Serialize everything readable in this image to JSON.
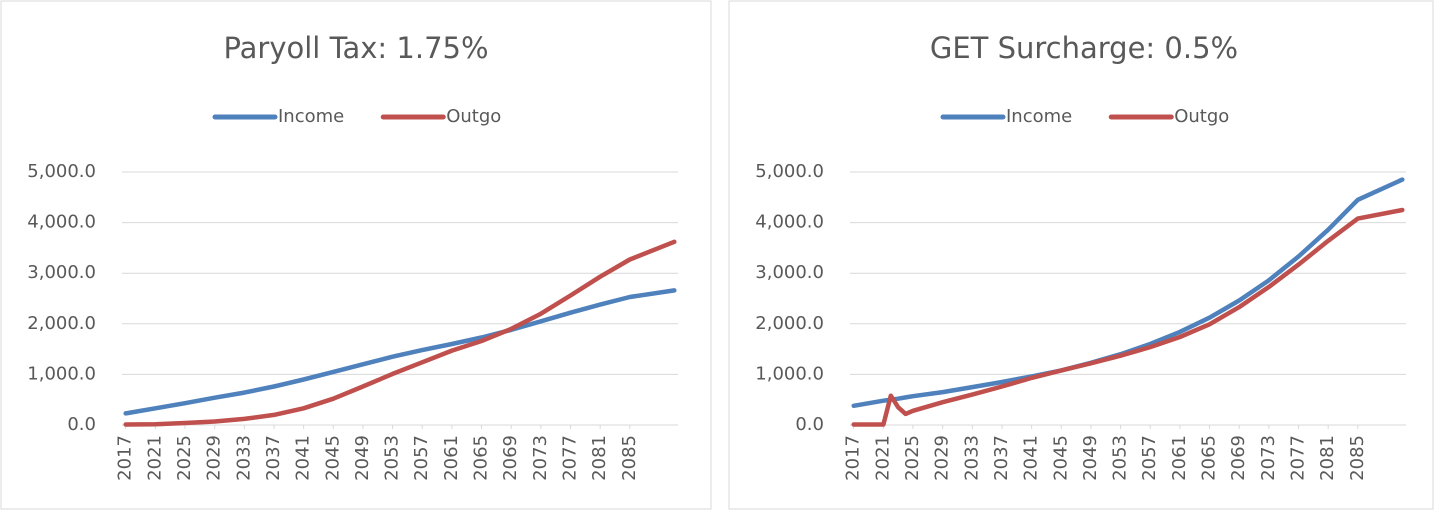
{
  "chart_data": [
    {
      "type": "line",
      "title": "Paryoll Tax: 1.75%",
      "x": [
        2017,
        2021,
        2025,
        2029,
        2033,
        2037,
        2041,
        2045,
        2049,
        2053,
        2057,
        2061,
        2065,
        2069,
        2073,
        2077,
        2081,
        2085,
        2091
      ],
      "series": [
        {
          "name": "Income",
          "color": "#4f81bd",
          "values": [
            230,
            330,
            430,
            540,
            640,
            760,
            900,
            1050,
            1200,
            1350,
            1480,
            1600,
            1730,
            1880,
            2050,
            2220,
            2380,
            2530,
            2660
          ]
        },
        {
          "name": "Outgo",
          "color": "#c0504d",
          "values": [
            10,
            15,
            40,
            70,
            120,
            200,
            330,
            520,
            760,
            1010,
            1240,
            1470,
            1660,
            1900,
            2200,
            2560,
            2930,
            3270,
            3620
          ]
        }
      ],
      "xlim": [
        2016.5,
        2091.5
      ],
      "xticks": [
        2017,
        2021,
        2025,
        2029,
        2033,
        2037,
        2041,
        2045,
        2049,
        2053,
        2057,
        2061,
        2065,
        2069,
        2073,
        2077,
        2081,
        2085
      ],
      "ylim": [
        0,
        5000
      ],
      "yticks": [
        {
          "value": 0,
          "label": "0.0"
        },
        {
          "value": 1000,
          "label": "1,000.0"
        },
        {
          "value": 2000,
          "label": "2,000.0"
        },
        {
          "value": 3000,
          "label": "3,000.0"
        },
        {
          "value": 4000,
          "label": "4,000.0"
        },
        {
          "value": 5000,
          "label": "5,000.0"
        }
      ],
      "grid": true,
      "legend": "top"
    },
    {
      "type": "line",
      "title": "GET Surcharge: 0.5%",
      "x": [
        2017,
        2021,
        2022,
        2023,
        2024,
        2025,
        2029,
        2033,
        2037,
        2041,
        2045,
        2049,
        2053,
        2057,
        2061,
        2065,
        2069,
        2073,
        2077,
        2081,
        2085,
        2091
      ],
      "series": [
        {
          "name": "Income",
          "color": "#4f81bd",
          "values": [
            380,
            480,
            500,
            520,
            545,
            570,
            650,
            750,
            850,
            960,
            1080,
            1230,
            1400,
            1600,
            1840,
            2120,
            2460,
            2860,
            3330,
            3860,
            4450,
            4850
          ]
        },
        {
          "name": "Outgo",
          "color": "#c0504d",
          "values": [
            10,
            10,
            580,
            350,
            220,
            280,
            450,
            600,
            760,
            930,
            1080,
            1220,
            1370,
            1540,
            1740,
            1990,
            2330,
            2730,
            3170,
            3640,
            4080,
            4250
          ]
        }
      ],
      "xlim": [
        2016.5,
        2091.5
      ],
      "xticks": [
        2017,
        2021,
        2025,
        2029,
        2033,
        2037,
        2041,
        2045,
        2049,
        2053,
        2057,
        2061,
        2065,
        2069,
        2073,
        2077,
        2081,
        2085
      ],
      "ylim": [
        0,
        5000
      ],
      "yticks": [
        {
          "value": 0,
          "label": "0.0"
        },
        {
          "value": 1000,
          "label": "1,000.0"
        },
        {
          "value": 2000,
          "label": "2,000.0"
        },
        {
          "value": 3000,
          "label": "3,000.0"
        },
        {
          "value": 4000,
          "label": "4,000.0"
        },
        {
          "value": 5000,
          "label": "5,000.0"
        }
      ],
      "grid": true,
      "legend": "top"
    }
  ]
}
